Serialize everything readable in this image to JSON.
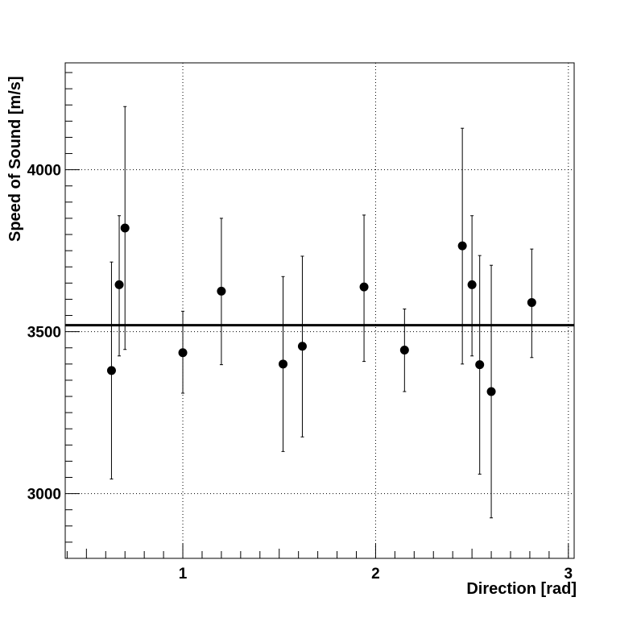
{
  "chart_data": {
    "type": "scatter",
    "title": "",
    "xlabel": "Direction [rad]",
    "ylabel": "Speed of Sound [m/s]",
    "xlim": [
      0.39,
      3.03
    ],
    "ylim": [
      2800,
      4330
    ],
    "xticks": [
      1,
      2,
      3
    ],
    "yticks": [
      3000,
      3500,
      4000
    ],
    "grid": true,
    "reference_line": {
      "y": 3520
    },
    "series": [
      {
        "x": [
          0.63,
          0.67,
          0.7,
          1.0,
          1.2,
          1.52,
          1.62,
          1.94,
          2.15,
          2.45,
          2.5,
          2.54,
          2.6,
          2.81
        ],
        "y": [
          3380,
          3645,
          3820,
          3435,
          3625,
          3400,
          3455,
          3638,
          3443,
          3765,
          3645,
          3398,
          3315,
          3590
        ],
        "y_low": [
          3045,
          3425,
          3445,
          3310,
          3398,
          3130,
          3175,
          3408,
          3315,
          3400,
          3425,
          3060,
          2925,
          3420
        ],
        "y_high": [
          3715,
          3858,
          4195,
          3563,
          3850,
          3670,
          3733,
          3860,
          3570,
          4128,
          3858,
          3735,
          3705,
          3755
        ]
      }
    ]
  }
}
